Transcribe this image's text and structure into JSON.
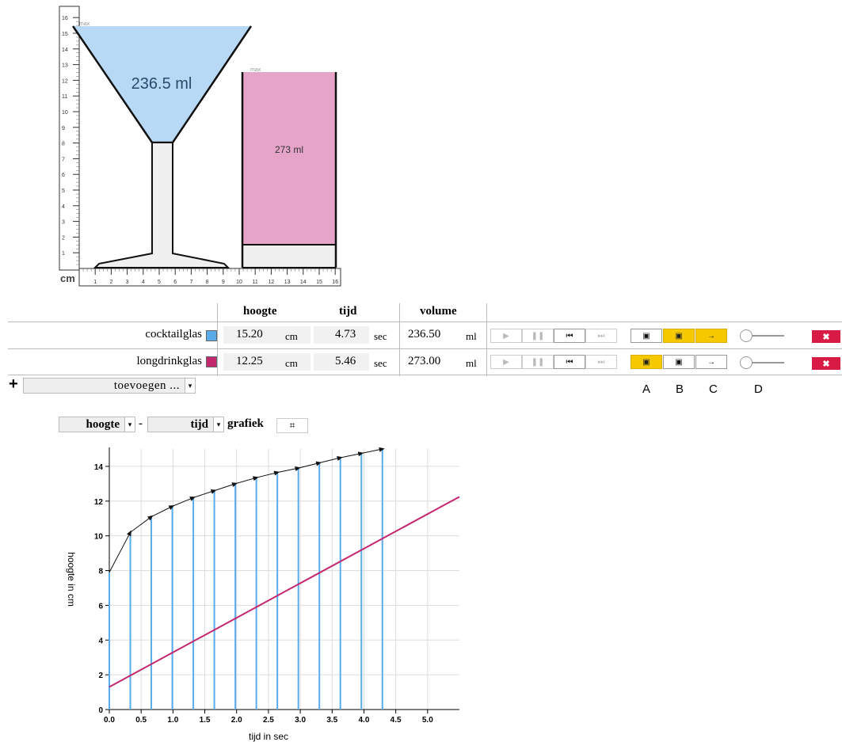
{
  "ruler": {
    "unit": "cm",
    "v_ticks": [
      "1",
      "2",
      "3",
      "4",
      "5",
      "6",
      "7",
      "8",
      "9",
      "10",
      "11",
      "12",
      "13",
      "14",
      "15",
      "16"
    ],
    "h_ticks": [
      "1",
      "2",
      "3",
      "4",
      "5",
      "6",
      "7",
      "8",
      "9",
      "10",
      "11",
      "12",
      "13",
      "14",
      "15",
      "16"
    ],
    "max_label": "max"
  },
  "glasses_visual": {
    "cocktail_volume_label": "236.5 ml",
    "longdrink_volume_label": "273 ml",
    "cocktail_color": "#b8d9f5",
    "longdrink_color": "#e6a4c9"
  },
  "table": {
    "headers": {
      "height": "hoogte",
      "time": "tijd",
      "volume": "volume"
    },
    "rows": [
      {
        "name": "cocktailglas",
        "color": "#5aabea",
        "height": "15.20",
        "height_unit": "cm",
        "time": "4.73",
        "time_unit": "sec",
        "volume": "236.50",
        "volume_unit": "ml",
        "play": "▶",
        "pause": "❚❚",
        "rewind": "⏮",
        "forward": "⏭",
        "btn_a": "▣",
        "btn_b": "▣",
        "btn_c": "→",
        "delete": "✖"
      },
      {
        "name": "longdrinkglas",
        "color": "#c2286e",
        "height": "12.25",
        "height_unit": "cm",
        "time": "5.46",
        "time_unit": "sec",
        "volume": "273.00",
        "volume_unit": "ml",
        "play": "▶",
        "pause": "❚❚",
        "rewind": "⏮",
        "forward": "⏭",
        "btn_a": "▣",
        "btn_b": "▣",
        "btn_c": "→",
        "delete": "✖"
      }
    ],
    "add_icon": "+",
    "add_select_value": "toevoegen ...",
    "caret": "▾",
    "column_letters": [
      "A",
      "B",
      "C",
      "D"
    ]
  },
  "graph_controls": {
    "y_select": "hoogte",
    "separator": "-",
    "x_select": "tijd",
    "label": "grafiek",
    "crop_icon": "⌗"
  },
  "chart_data": {
    "type": "line",
    "xlabel": "tijd in sec",
    "ylabel": "hoogte in cm",
    "xlim": [
      0,
      5.5
    ],
    "ylim": [
      0,
      15
    ],
    "x_ticks": [
      "0.0",
      "0.5",
      "1.0",
      "1.5",
      "2.0",
      "2.5",
      "3.0",
      "3.5",
      "4.0",
      "4.5",
      "5.0"
    ],
    "y_ticks": [
      "0",
      "2",
      "4",
      "6",
      "8",
      "10",
      "12",
      "14"
    ],
    "grid": true,
    "series": [
      {
        "color": "#111111",
        "x": [
          0,
          0.33,
          0.66,
          0.99,
          1.32,
          1.65,
          1.98,
          2.31,
          2.64,
          2.97,
          3.3,
          3.63,
          3.96,
          4.29
        ],
        "y": [
          7.9,
          10.2,
          11.1,
          11.7,
          12.2,
          12.6,
          13.0,
          13.35,
          13.65,
          13.9,
          14.2,
          14.5,
          14.75,
          15.0
        ]
      },
      {
        "color": "#c2286e",
        "x": [
          0,
          5.5
        ],
        "y": [
          1.3,
          12.25
        ]
      }
    ],
    "drop_lines_color": "#5aabea"
  }
}
